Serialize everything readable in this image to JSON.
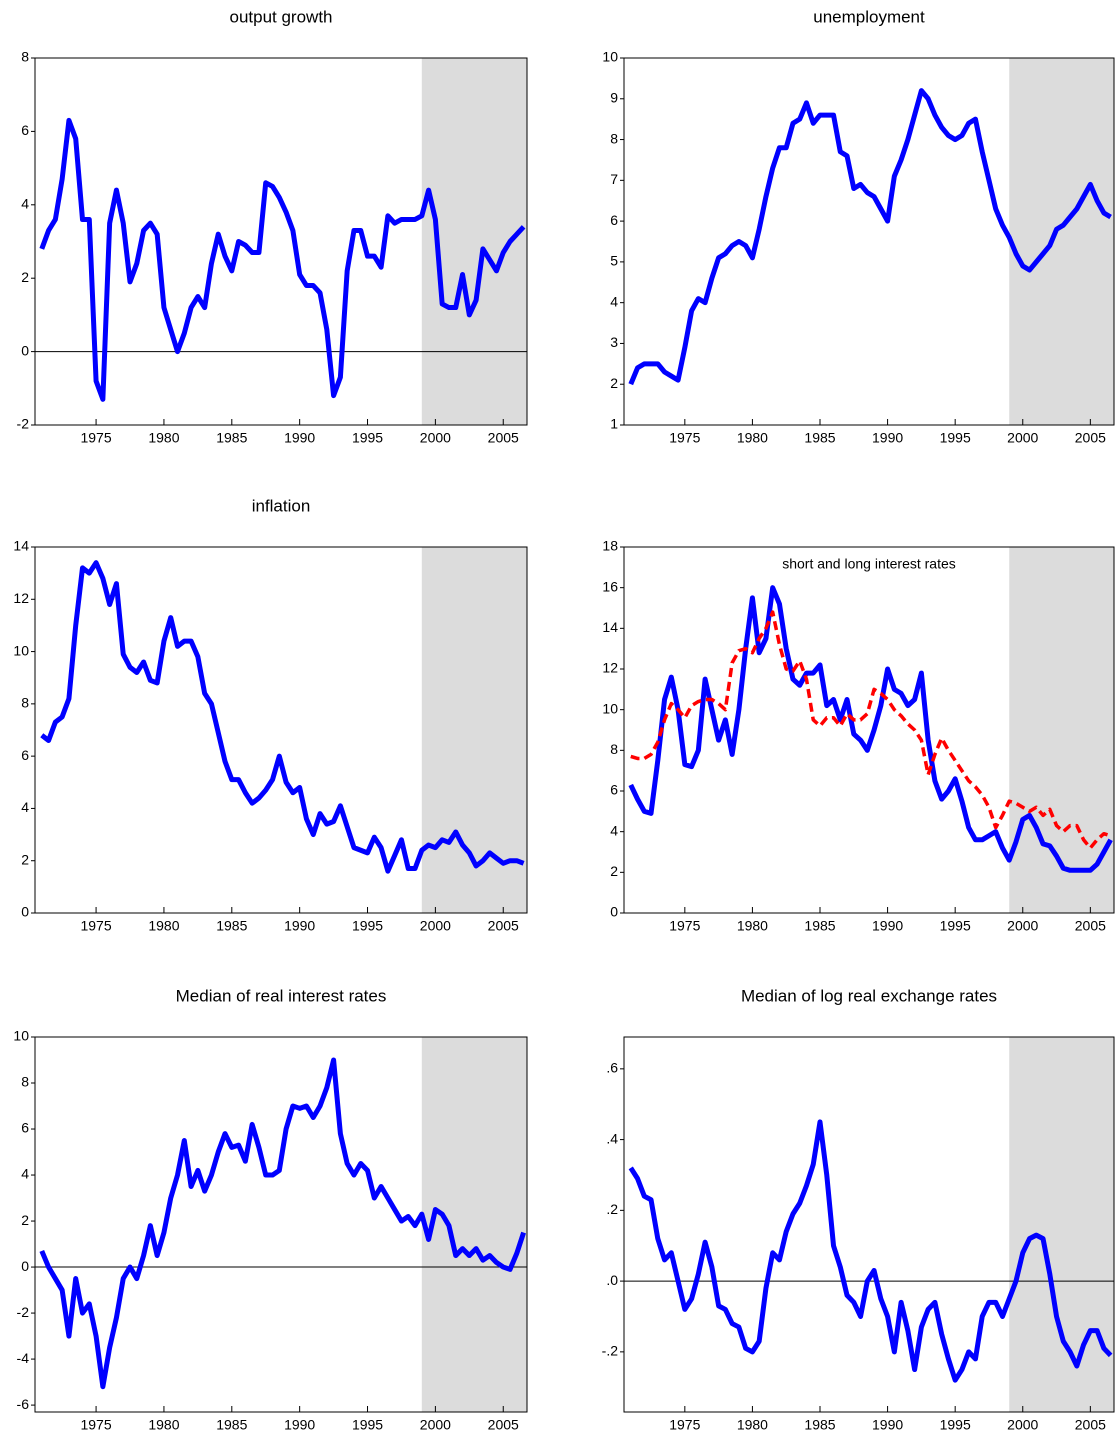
{
  "chart_data": [
    {
      "type": "line",
      "title": "output growth",
      "x": [
        1971,
        1971.5,
        1972,
        1972.5,
        1973,
        1973.5,
        1974,
        1974.5,
        1975,
        1975.5,
        1976,
        1976.5,
        1977,
        1977.5,
        1978,
        1978.5,
        1979,
        1979.5,
        1980,
        1980.5,
        1981,
        1981.5,
        1982,
        1982.5,
        1983,
        1983.5,
        1984,
        1984.5,
        1985,
        1985.5,
        1986,
        1986.5,
        1987,
        1987.5,
        1988,
        1988.5,
        1989,
        1989.5,
        1990,
        1990.5,
        1991,
        1991.5,
        1992,
        1992.5,
        1993,
        1993.5,
        1994,
        1994.5,
        1995,
        1995.5,
        1996,
        1996.5,
        1997,
        1997.5,
        1998,
        1998.5,
        1999,
        1999.5,
        2000,
        2000.5,
        2001,
        2001.5,
        2002,
        2002.5,
        2003,
        2003.5,
        2004,
        2004.5,
        2005,
        2005.5,
        2006,
        2006.5
      ],
      "series": [
        {
          "color": "#0000ff",
          "values": [
            2.8,
            3.3,
            3.6,
            4.7,
            6.3,
            5.8,
            3.6,
            3.6,
            -0.8,
            -1.3,
            3.5,
            4.4,
            3.5,
            1.9,
            2.4,
            3.3,
            3.5,
            3.2,
            1.2,
            0.6,
            0.0,
            0.5,
            1.2,
            1.5,
            1.2,
            2.4,
            3.2,
            2.6,
            2.2,
            3.0,
            2.9,
            2.7,
            2.7,
            4.6,
            4.5,
            4.2,
            3.8,
            3.3,
            2.1,
            1.8,
            1.8,
            1.6,
            0.6,
            -1.2,
            -0.7,
            2.2,
            3.3,
            3.3,
            2.6,
            2.6,
            2.3,
            3.7,
            3.5,
            3.6,
            3.6,
            3.6,
            3.7,
            4.4,
            3.6,
            1.3,
            1.2,
            1.2,
            2.1,
            1.0,
            1.4,
            2.8,
            2.5,
            2.2,
            2.7,
            3.0,
            3.2,
            3.4
          ]
        }
      ],
      "xlim": [
        1970.5,
        2006.75
      ],
      "xticks": [
        1975,
        1980,
        1985,
        1990,
        1995,
        2000,
        2005
      ],
      "ylim": [
        -2,
        8
      ],
      "yticks": [
        -2,
        0,
        2,
        4,
        6,
        8
      ],
      "zero_line": true,
      "shade_from": 1999,
      "shade_color": "#dcdcdc"
    },
    {
      "type": "line",
      "title": "unemployment",
      "x": [
        1971,
        1971.5,
        1972,
        1972.5,
        1973,
        1973.5,
        1974,
        1974.5,
        1975,
        1975.5,
        1976,
        1976.5,
        1977,
        1977.5,
        1978,
        1978.5,
        1979,
        1979.5,
        1980,
        1980.5,
        1981,
        1981.5,
        1982,
        1982.5,
        1983,
        1983.5,
        1984,
        1984.5,
        1985,
        1985.5,
        1986,
        1986.5,
        1987,
        1987.5,
        1988,
        1988.5,
        1989,
        1989.5,
        1990,
        1990.5,
        1991,
        1991.5,
        1992,
        1992.5,
        1993,
        1993.5,
        1994,
        1994.5,
        1995,
        1995.5,
        1996,
        1996.5,
        1997,
        1997.5,
        1998,
        1998.5,
        1999,
        1999.5,
        2000,
        2000.5,
        2001,
        2001.5,
        2002,
        2002.5,
        2003,
        2003.5,
        2004,
        2004.5,
        2005,
        2005.5,
        2006,
        2006.5
      ],
      "series": [
        {
          "color": "#0000ff",
          "values": [
            2.0,
            2.4,
            2.5,
            2.5,
            2.5,
            2.3,
            2.2,
            2.1,
            2.9,
            3.8,
            4.1,
            4.0,
            4.6,
            5.1,
            5.2,
            5.4,
            5.5,
            5.4,
            5.1,
            5.8,
            6.6,
            7.3,
            7.8,
            7.8,
            8.4,
            8.5,
            8.9,
            8.4,
            8.6,
            8.6,
            8.6,
            7.7,
            7.6,
            6.8,
            6.9,
            6.7,
            6.6,
            6.3,
            6.0,
            7.1,
            7.5,
            8.0,
            8.6,
            9.2,
            9.0,
            8.6,
            8.3,
            8.1,
            8.0,
            8.1,
            8.4,
            8.5,
            7.7,
            7.0,
            6.3,
            5.9,
            5.6,
            5.2,
            4.9,
            4.8,
            5.0,
            5.2,
            5.4,
            5.8,
            5.9,
            6.1,
            6.3,
            6.6,
            6.9,
            6.5,
            6.2,
            6.1
          ]
        }
      ],
      "xlim": [
        1970.5,
        2006.75
      ],
      "xticks": [
        1975,
        1980,
        1985,
        1990,
        1995,
        2000,
        2005
      ],
      "ylim": [
        1,
        10
      ],
      "yticks": [
        1,
        2,
        3,
        4,
        5,
        6,
        7,
        8,
        9,
        10
      ],
      "zero_line": false,
      "shade_from": 1999,
      "shade_color": "#dcdcdc"
    },
    {
      "type": "line",
      "title": "inflation",
      "x": [
        1971,
        1971.5,
        1972,
        1972.5,
        1973,
        1973.5,
        1974,
        1974.5,
        1975,
        1975.5,
        1976,
        1976.5,
        1977,
        1977.5,
        1978,
        1978.5,
        1979,
        1979.5,
        1980,
        1980.5,
        1981,
        1981.5,
        1982,
        1982.5,
        1983,
        1983.5,
        1984,
        1984.5,
        1985,
        1985.5,
        1986,
        1986.5,
        1987,
        1987.5,
        1988,
        1988.5,
        1989,
        1989.5,
        1990,
        1990.5,
        1991,
        1991.5,
        1992,
        1992.5,
        1993,
        1993.5,
        1994,
        1994.5,
        1995,
        1995.5,
        1996,
        1996.5,
        1997,
        1997.5,
        1998,
        1998.5,
        1999,
        1999.5,
        2000,
        2000.5,
        2001,
        2001.5,
        2002,
        2002.5,
        2003,
        2003.5,
        2004,
        2004.5,
        2005,
        2005.5,
        2006,
        2006.5
      ],
      "series": [
        {
          "color": "#0000ff",
          "values": [
            6.8,
            6.6,
            7.3,
            7.5,
            8.2,
            11.0,
            13.2,
            13.0,
            13.4,
            12.8,
            11.8,
            12.6,
            9.9,
            9.4,
            9.2,
            9.6,
            8.9,
            8.8,
            10.4,
            11.3,
            10.2,
            10.4,
            10.4,
            9.8,
            8.4,
            8.0,
            6.9,
            5.8,
            5.1,
            5.1,
            4.6,
            4.2,
            4.4,
            4.7,
            5.1,
            6.0,
            5.0,
            4.6,
            4.8,
            3.6,
            3.0,
            3.8,
            3.4,
            3.5,
            4.1,
            3.3,
            2.5,
            2.4,
            2.3,
            2.9,
            2.5,
            1.6,
            2.2,
            2.8,
            1.7,
            1.7,
            2.4,
            2.6,
            2.5,
            2.8,
            2.7,
            3.1,
            2.6,
            2.3,
            1.8,
            2.0,
            2.3,
            2.1,
            1.9,
            2.0,
            2.0,
            1.9
          ]
        }
      ],
      "xlim": [
        1970.5,
        2006.75
      ],
      "xticks": [
        1975,
        1980,
        1985,
        1990,
        1995,
        2000,
        2005
      ],
      "ylim": [
        0,
        14
      ],
      "yticks": [
        0,
        2,
        4,
        6,
        8,
        10,
        12,
        14
      ],
      "zero_line": false,
      "shade_from": 1999,
      "shade_color": "#dcdcdc"
    },
    {
      "type": "line",
      "title": "short and long interest rates",
      "title_position": "inside",
      "x": [
        1971,
        1971.5,
        1972,
        1972.5,
        1973,
        1973.5,
        1974,
        1974.5,
        1975,
        1975.5,
        1976,
        1976.5,
        1977,
        1977.5,
        1978,
        1978.5,
        1979,
        1979.5,
        1980,
        1980.5,
        1981,
        1981.5,
        1982,
        1982.5,
        1983,
        1983.5,
        1984,
        1984.5,
        1985,
        1985.5,
        1986,
        1986.5,
        1987,
        1987.5,
        1988,
        1988.5,
        1989,
        1989.5,
        1990,
        1990.5,
        1991,
        1991.5,
        1992,
        1992.5,
        1993,
        1993.5,
        1994,
        1994.5,
        1995,
        1995.5,
        1996,
        1996.5,
        1997,
        1997.5,
        1998,
        1998.5,
        1999,
        1999.5,
        2000,
        2000.5,
        2001,
        2001.5,
        2002,
        2002.5,
        2003,
        2003.5,
        2004,
        2004.5,
        2005,
        2005.5,
        2006,
        2006.5
      ],
      "series": [
        {
          "color": "#0000ff",
          "dash": false,
          "values": [
            6.3,
            5.6,
            5.0,
            4.9,
            7.5,
            10.5,
            11.6,
            10.0,
            7.3,
            7.2,
            8.0,
            11.5,
            10.0,
            8.5,
            9.5,
            7.8,
            10.0,
            13.0,
            15.5,
            12.8,
            13.5,
            16.0,
            15.2,
            13.0,
            11.5,
            11.2,
            11.8,
            11.8,
            12.2,
            10.2,
            10.5,
            9.5,
            10.5,
            8.8,
            8.5,
            8.0,
            9.0,
            10.2,
            12.0,
            11.0,
            10.8,
            10.2,
            10.5,
            11.8,
            8.5,
            6.5,
            5.6,
            6.0,
            6.6,
            5.5,
            4.2,
            3.6,
            3.6,
            3.8,
            4.0,
            3.2,
            2.6,
            3.5,
            4.6,
            4.8,
            4.2,
            3.4,
            3.3,
            2.8,
            2.2,
            2.1,
            2.1,
            2.1,
            2.1,
            2.4,
            3.0,
            3.6
          ]
        },
        {
          "color": "#ff0000",
          "dash": true,
          "values": [
            7.7,
            7.6,
            7.6,
            7.8,
            8.4,
            9.5,
            10.3,
            10.0,
            9.6,
            10.2,
            10.4,
            10.5,
            10.5,
            10.3,
            10.0,
            12.3,
            12.9,
            13.0,
            12.8,
            13.5,
            14.0,
            14.8,
            13.2,
            12.0,
            11.9,
            12.4,
            11.5,
            9.5,
            9.2,
            9.6,
            9.6,
            9.2,
            9.8,
            9.5,
            9.5,
            9.8,
            11.0,
            10.8,
            10.5,
            10.0,
            9.7,
            9.3,
            9.0,
            8.5,
            6.8,
            7.8,
            8.6,
            8.0,
            7.5,
            7.0,
            6.5,
            6.2,
            5.8,
            5.2,
            4.2,
            4.8,
            5.5,
            5.4,
            5.2,
            5.0,
            5.2,
            4.8,
            5.1,
            4.3,
            4.0,
            4.3,
            4.3,
            3.6,
            3.2,
            3.6,
            3.9,
            3.8
          ]
        }
      ],
      "xlim": [
        1970.5,
        2006.75
      ],
      "xticks": [
        1975,
        1980,
        1985,
        1990,
        1995,
        2000,
        2005
      ],
      "ylim": [
        0,
        18
      ],
      "yticks": [
        0,
        2,
        4,
        6,
        8,
        10,
        12,
        14,
        16,
        18
      ],
      "zero_line": false,
      "shade_from": 1999,
      "shade_color": "#dcdcdc"
    },
    {
      "type": "line",
      "title": "Median of real interest rates",
      "x": [
        1971,
        1971.5,
        1972,
        1972.5,
        1973,
        1973.5,
        1974,
        1974.5,
        1975,
        1975.5,
        1976,
        1976.5,
        1977,
        1977.5,
        1978,
        1978.5,
        1979,
        1979.5,
        1980,
        1980.5,
        1981,
        1981.5,
        1982,
        1982.5,
        1983,
        1983.5,
        1984,
        1984.5,
        1985,
        1985.5,
        1986,
        1986.5,
        1987,
        1987.5,
        1988,
        1988.5,
        1989,
        1989.5,
        1990,
        1990.5,
        1991,
        1991.5,
        1992,
        1992.5,
        1993,
        1993.5,
        1994,
        1994.5,
        1995,
        1995.5,
        1996,
        1996.5,
        1997,
        1997.5,
        1998,
        1998.5,
        1999,
        1999.5,
        2000,
        2000.5,
        2001,
        2001.5,
        2002,
        2002.5,
        2003,
        2003.5,
        2004,
        2004.5,
        2005,
        2005.5,
        2006,
        2006.5
      ],
      "series": [
        {
          "color": "#0000ff",
          "values": [
            0.7,
            0.0,
            -0.5,
            -1.0,
            -3.0,
            -0.5,
            -2.0,
            -1.6,
            -3.0,
            -5.2,
            -3.5,
            -2.2,
            -0.5,
            0.0,
            -0.5,
            0.5,
            1.8,
            0.5,
            1.5,
            3.0,
            4.0,
            5.5,
            3.5,
            4.2,
            3.3,
            4.0,
            5.0,
            5.8,
            5.2,
            5.3,
            4.6,
            6.2,
            5.2,
            4.0,
            4.0,
            4.2,
            6.0,
            7.0,
            6.9,
            7.0,
            6.5,
            7.0,
            7.8,
            9.0,
            5.8,
            4.5,
            4.0,
            4.5,
            4.2,
            3.0,
            3.5,
            3.0,
            2.5,
            2.0,
            2.2,
            1.8,
            2.3,
            1.2,
            2.5,
            2.3,
            1.8,
            0.5,
            0.8,
            0.5,
            0.8,
            0.3,
            0.5,
            0.2,
            0.0,
            -0.1,
            0.6,
            1.5
          ]
        }
      ],
      "xlim": [
        1970.5,
        2006.75
      ],
      "xticks": [
        1975,
        1980,
        1985,
        1990,
        1995,
        2000,
        2005
      ],
      "ylim": [
        -6.3,
        10
      ],
      "yticks": [
        -6,
        -4,
        -2,
        0,
        2,
        4,
        6,
        8,
        10
      ],
      "zero_line": true,
      "shade_from": 1999,
      "shade_color": "#dcdcdc"
    },
    {
      "type": "line",
      "title": "Median of log real exchange rates",
      "x": [
        1971,
        1971.5,
        1972,
        1972.5,
        1973,
        1973.5,
        1974,
        1974.5,
        1975,
        1975.5,
        1976,
        1976.5,
        1977,
        1977.5,
        1978,
        1978.5,
        1979,
        1979.5,
        1980,
        1980.5,
        1981,
        1981.5,
        1982,
        1982.5,
        1983,
        1983.5,
        1984,
        1984.5,
        1985,
        1985.5,
        1986,
        1986.5,
        1987,
        1987.5,
        1988,
        1988.5,
        1989,
        1989.5,
        1990,
        1990.5,
        1991,
        1991.5,
        1992,
        1992.5,
        1993,
        1993.5,
        1994,
        1994.5,
        1995,
        1995.5,
        1996,
        1996.5,
        1997,
        1997.5,
        1998,
        1998.5,
        1999,
        1999.5,
        2000,
        2000.5,
        2001,
        2001.5,
        2002,
        2002.5,
        2003,
        2003.5,
        2004,
        2004.5,
        2005,
        2005.5,
        2006,
        2006.5
      ],
      "series": [
        {
          "color": "#0000ff",
          "values": [
            0.32,
            0.29,
            0.24,
            0.23,
            0.12,
            0.06,
            0.08,
            0.0,
            -0.08,
            -0.05,
            0.02,
            0.11,
            0.04,
            -0.07,
            -0.08,
            -0.12,
            -0.13,
            -0.19,
            -0.2,
            -0.17,
            -0.02,
            0.08,
            0.06,
            0.14,
            0.19,
            0.22,
            0.27,
            0.33,
            0.45,
            0.3,
            0.1,
            0.04,
            -0.04,
            -0.06,
            -0.1,
            0.0,
            0.03,
            -0.05,
            -0.1,
            -0.2,
            -0.06,
            -0.14,
            -0.25,
            -0.13,
            -0.08,
            -0.06,
            -0.15,
            -0.22,
            -0.28,
            -0.25,
            -0.2,
            -0.22,
            -0.1,
            -0.06,
            -0.06,
            -0.1,
            -0.05,
            0.0,
            0.08,
            0.12,
            0.13,
            0.12,
            0.02,
            -0.1,
            -0.17,
            -0.2,
            -0.24,
            -0.18,
            -0.14,
            -0.14,
            -0.19,
            -0.21
          ]
        }
      ],
      "xlim": [
        1970.5,
        2006.75
      ],
      "xticks": [
        1975,
        1980,
        1985,
        1990,
        1995,
        2000,
        2005
      ],
      "ylim": [
        -0.37,
        0.69
      ],
      "yticks": [
        {
          "value": -0.2,
          "label": "-.2"
        },
        {
          "value": 0,
          "label": ".0"
        },
        {
          "value": 0.2,
          "label": ".2"
        },
        {
          "value": 0.4,
          "label": ".4"
        },
        {
          "value": 0.6,
          "label": ".6"
        }
      ],
      "zero_line": true,
      "shade_from": 1999,
      "shade_color": "#dcdcdc"
    }
  ]
}
